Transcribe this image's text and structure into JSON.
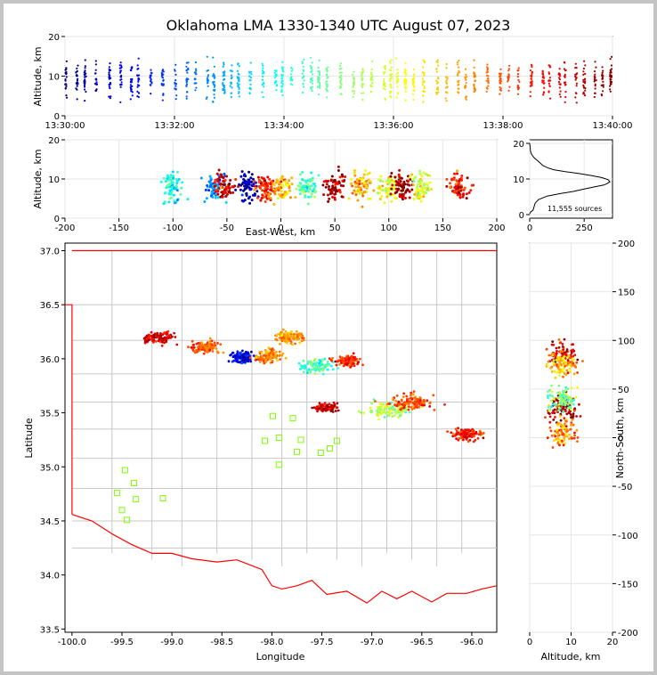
{
  "chart_data": {
    "title": "Oklahoma LMA 1330-1340 UTC August 07, 2023",
    "source_count_label": "11,555 sources",
    "colormap": "jet (time of source)",
    "panels": [
      {
        "id": "time_altitude",
        "type": "scatter",
        "ylabel": "Altitude, km",
        "xlim": [
          "13:30:00",
          "13:40:00"
        ],
        "ylim": [
          0,
          20
        ],
        "x_ticks": [
          "13:30:00",
          "13:32:00",
          "13:34:00",
          "13:36:00",
          "13:38:00",
          "13:40:00"
        ],
        "y_ticks": [
          0,
          10,
          20
        ],
        "grid": true
      },
      {
        "id": "ew_altitude",
        "type": "scatter",
        "xlabel": "East-West, km",
        "ylabel": "Altitude, km",
        "xlim": [
          -200,
          200
        ],
        "ylim": [
          0,
          20
        ],
        "x_ticks": [
          -200,
          -150,
          -100,
          -50,
          0,
          50,
          100,
          150,
          200
        ],
        "y_ticks": [
          0,
          10,
          20
        ],
        "grid": true
      },
      {
        "id": "altitude_histogram",
        "type": "line",
        "xlim": [
          0,
          380
        ],
        "ylim": [
          -1,
          21
        ],
        "x_ticks": [
          0,
          250
        ],
        "y_ticks": [
          0,
          10,
          20
        ],
        "x": [
          0,
          5,
          15,
          20,
          25,
          40,
          80,
          140,
          200,
          250,
          300,
          340,
          355,
          368,
          360,
          330,
          280,
          220,
          160,
          110,
          80,
          60,
          50,
          35,
          20,
          10,
          5,
          3,
          2,
          0
        ],
        "y": [
          0.2,
          0.8,
          1.2,
          2.2,
          3.2,
          4.2,
          5.2,
          5.9,
          6.5,
          7.2,
          7.8,
          8.3,
          8.7,
          9.2,
          9.8,
          10.4,
          11.0,
          11.6,
          12.1,
          12.6,
          13.2,
          13.8,
          14.4,
          15.2,
          16.0,
          16.8,
          17.5,
          18.2,
          19.0,
          20.0
        ]
      },
      {
        "id": "plan_view",
        "type": "scatter",
        "xlabel": "Longitude",
        "ylabel": "Latitude",
        "xlim": [
          -100.07,
          -95.75
        ],
        "ylim": [
          33.47,
          37.07
        ],
        "x_ticks": [
          -100.0,
          -99.5,
          -99.0,
          -98.5,
          -98.0,
          -97.5,
          -97.0,
          -96.5,
          -96.0
        ],
        "y_ticks": [
          33.5,
          34.0,
          34.5,
          35.0,
          35.5,
          36.0,
          36.5,
          37.0
        ],
        "lma_stations": [
          {
            "lon": -99.47,
            "lat": 34.97
          },
          {
            "lon": -99.38,
            "lat": 34.85
          },
          {
            "lon": -99.55,
            "lat": 34.76
          },
          {
            "lon": -99.36,
            "lat": 34.7
          },
          {
            "lon": -99.09,
            "lat": 34.71
          },
          {
            "lon": -99.5,
            "lat": 34.6
          },
          {
            "lon": -99.45,
            "lat": 34.51
          },
          {
            "lon": -98.07,
            "lat": 35.24
          },
          {
            "lon": -97.99,
            "lat": 35.47
          },
          {
            "lon": -97.93,
            "lat": 35.27
          },
          {
            "lon": -97.79,
            "lat": 35.45
          },
          {
            "lon": -97.71,
            "lat": 35.25
          },
          {
            "lon": -97.35,
            "lat": 35.24
          },
          {
            "lon": -97.42,
            "lat": 35.17
          },
          {
            "lon": -97.51,
            "lat": 35.13
          },
          {
            "lon": -97.93,
            "lat": 35.02
          },
          {
            "lon": -97.75,
            "lat": 35.14
          }
        ],
        "clusters": [
          {
            "lon": -99.13,
            "lat": 36.2,
            "spread_lon": 0.14,
            "spread_lat": 0.05,
            "time_frac": 0.9
          },
          {
            "lon": -98.66,
            "lat": 36.11,
            "spread_lon": 0.14,
            "spread_lat": 0.05,
            "time_frac": 0.78
          },
          {
            "lon": -98.3,
            "lat": 36.02,
            "spread_lon": 0.1,
            "spread_lat": 0.05,
            "time_frac": 0.1
          },
          {
            "lon": -98.04,
            "lat": 36.03,
            "spread_lon": 0.12,
            "spread_lat": 0.06,
            "time_frac": 0.75
          },
          {
            "lon": -97.82,
            "lat": 36.2,
            "spread_lon": 0.12,
            "spread_lat": 0.05,
            "time_frac": 0.72
          },
          {
            "lon": -97.55,
            "lat": 35.93,
            "spread_lon": 0.14,
            "spread_lat": 0.06,
            "time_frac": 0.45
          },
          {
            "lon": -97.25,
            "lat": 35.98,
            "spread_lon": 0.12,
            "spread_lat": 0.05,
            "time_frac": 0.85
          },
          {
            "lon": -97.45,
            "lat": 35.55,
            "spread_lon": 0.1,
            "spread_lat": 0.04,
            "time_frac": 0.92
          },
          {
            "lon": -96.85,
            "lat": 35.53,
            "spread_lon": 0.22,
            "spread_lat": 0.06,
            "time_frac": 0.55
          },
          {
            "lon": -96.6,
            "lat": 35.6,
            "spread_lon": 0.22,
            "spread_lat": 0.07,
            "time_frac": 0.8
          },
          {
            "lon": -96.05,
            "lat": 35.3,
            "spread_lon": 0.14,
            "spread_lat": 0.05,
            "time_frac": 0.87
          }
        ]
      },
      {
        "id": "altitude_ns",
        "type": "scatter",
        "xlabel": "Altitude, km",
        "ylabel": "North-South, km",
        "xlim": [
          0,
          20
        ],
        "ylim": [
          -200,
          200
        ],
        "x_ticks": [
          0,
          10,
          20
        ],
        "y_ticks": [
          -200,
          -150,
          -100,
          -50,
          0,
          50,
          100,
          150,
          200
        ],
        "grid": true
      }
    ]
  },
  "colors": {
    "state_border": "#ff0000",
    "county_lines": "#c8c8c8",
    "station_marker": "#7fff00",
    "histogram_line": "#000000"
  }
}
